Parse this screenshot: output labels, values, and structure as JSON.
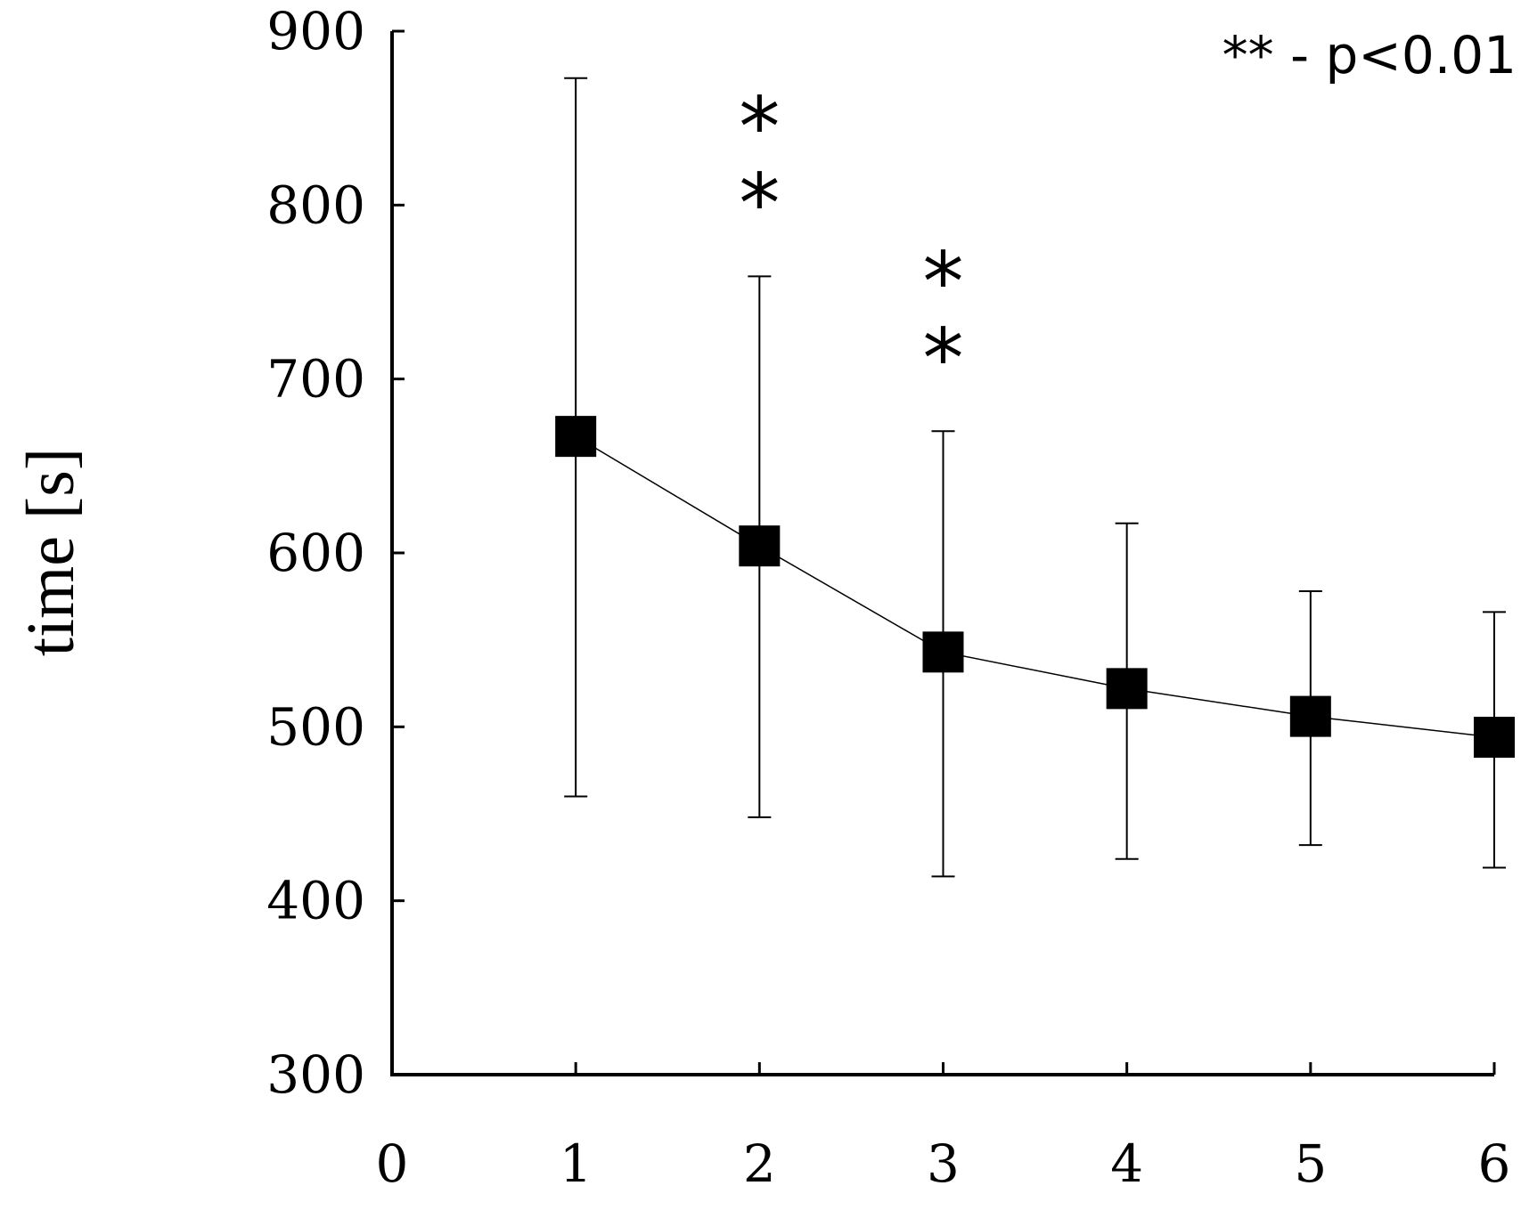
{
  "chart_data": {
    "type": "line",
    "title": "",
    "xlabel": "",
    "ylabel": "time [s]",
    "xlim": [
      0,
      6
    ],
    "ylim": [
      300,
      900
    ],
    "x_ticks": [
      "0",
      "1",
      "2",
      "3",
      "4",
      "5",
      "6"
    ],
    "y_ticks": [
      "300",
      "400",
      "500",
      "600",
      "700",
      "800",
      "900"
    ],
    "grid": false,
    "marker": "square",
    "series": [
      {
        "x": [
          1,
          2,
          3,
          4,
          5,
          6
        ],
        "y": [
          667,
          604,
          543,
          522,
          506,
          494
        ],
        "error_low": [
          460,
          448,
          414,
          424,
          432,
          419
        ],
        "error_high": [
          873,
          759,
          670,
          617,
          578,
          566
        ],
        "color": "#000000"
      }
    ],
    "significance": [
      {
        "x": 2,
        "label": "*\n*"
      },
      {
        "x": 3,
        "label": "*\n*"
      }
    ],
    "significance_symbol": "*",
    "annotation": "** - p<0.01"
  }
}
